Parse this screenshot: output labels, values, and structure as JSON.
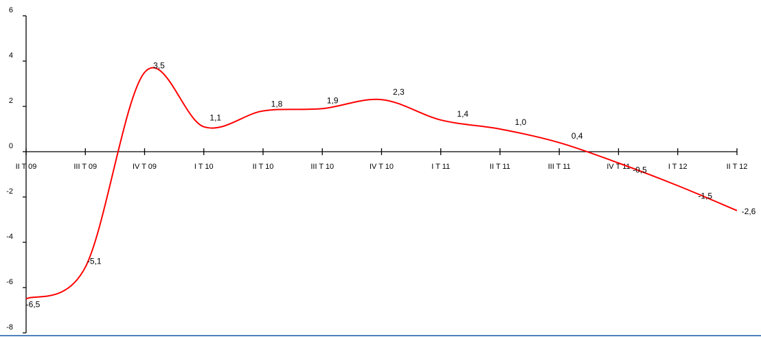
{
  "chart_data": {
    "type": "line",
    "categories": [
      "II T 09",
      "III T 09",
      "IV T 09",
      "I T 10",
      "II T 10",
      "III T 10",
      "IV T 10",
      "I T 11",
      "II T 11",
      "III T 11",
      "IV T 11",
      "I T 12",
      "II T 12"
    ],
    "series": [
      {
        "values": [
          -6.5,
          -5.1,
          3.5,
          1.1,
          1.8,
          1.9,
          2.3,
          1.4,
          1.0,
          0.4,
          -0.5,
          -1.5,
          -2.6
        ]
      }
    ],
    "data_labels": [
      "-6,5",
      "-5,1",
      "3,5",
      "1,1",
      "1,8",
      "1,9",
      "2,3",
      "1,4",
      "1,0",
      "0,4",
      "-0,5",
      "-1,5",
      "-2,6"
    ],
    "y_tick_labels": [
      "-8",
      "-6",
      "-4",
      "-2",
      "0",
      "2",
      "4",
      "6"
    ],
    "y_ticks": [
      -8,
      -6,
      -4,
      -2,
      0,
      2,
      4,
      6
    ],
    "ylim": [
      -8,
      6
    ],
    "grid": false,
    "legend": "none",
    "title": "",
    "xlabel": "",
    "ylabel": "",
    "colors": {
      "line": "#ff0000",
      "axis": "#000000",
      "bottom_border": "#4f81bd"
    }
  }
}
